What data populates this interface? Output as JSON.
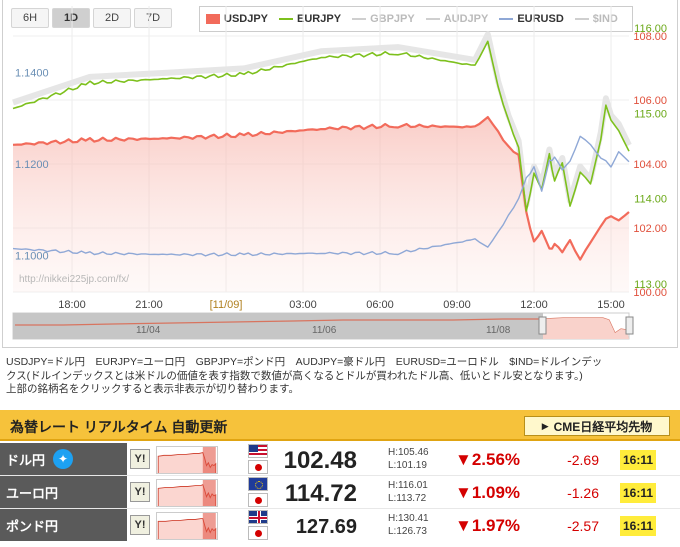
{
  "range_buttons": [
    {
      "label": "6H",
      "active": false
    },
    {
      "label": "1D",
      "active": true
    },
    {
      "label": "2D",
      "active": false
    },
    {
      "label": "7D",
      "active": false
    }
  ],
  "legend": [
    {
      "label": "USDJPY",
      "color": "#f26b5b",
      "style": "box",
      "active": true
    },
    {
      "label": "EURJPY",
      "color": "#7dc01d",
      "style": "line",
      "active": true
    },
    {
      "label": "GBPJPY",
      "color": "#bbbbbb",
      "style": "line",
      "active": false
    },
    {
      "label": "AUDJPY",
      "color": "#bbbbbb",
      "style": "line",
      "active": false
    },
    {
      "label": "EURUSD",
      "color": "#8fa8d6",
      "style": "line",
      "active": true
    },
    {
      "label": "$IND",
      "color": "#bbbbbb",
      "style": "line",
      "active": false
    }
  ],
  "chart_data": {
    "type": "line",
    "x_labels": [
      "18:00",
      "21:00",
      "[11/09]",
      "03:00",
      "06:00",
      "09:00",
      "12:00",
      "15:00"
    ],
    "left_axis_labels": [
      "1.1400",
      "1.1200",
      "1.1000"
    ],
    "usdjpy_axis_labels": [
      "108.00",
      "106.00",
      "104.00",
      "102.00",
      "100.00"
    ],
    "eurjpy_axis_labels": [
      "116.00",
      "115.00",
      "114.00",
      "113.00"
    ],
    "watermark": "http://nikkei225jp.com/fx/",
    "navigator_labels": [
      "11/04",
      "11/06",
      "11/08"
    ],
    "series": [
      {
        "name": "USDJPY",
        "color": "#f26b5b",
        "axis": "right_usdjpy",
        "ylim": [
          100,
          108
        ],
        "x": [
          0,
          3,
          6,
          9,
          12,
          15,
          18,
          18.5,
          18.9,
          19.3,
          19.7,
          20,
          20.3,
          20.6,
          20.9,
          21.1,
          21.4,
          21.7,
          22.1,
          22.5,
          22.9,
          23.3,
          23.6,
          24
        ],
        "values": [
          104.6,
          104.75,
          104.8,
          104.9,
          105.1,
          105.2,
          105.15,
          105.5,
          105.0,
          104.5,
          104.3,
          102.5,
          101.6,
          101.9,
          101.3,
          101.5,
          101.2,
          101.6,
          101.0,
          101.5,
          102.1,
          102.4,
          102.2,
          102.5
        ]
      },
      {
        "name": "EURJPY",
        "color": "#7dc01d",
        "axis": "right_eurjpy",
        "ylim": [
          113,
          116
        ],
        "x": [
          0,
          3,
          6,
          9,
          12,
          15,
          18,
          18.5,
          18.9,
          19.3,
          19.7,
          20,
          20.3,
          20.6,
          20.9,
          21.1,
          21.4,
          21.7,
          22.1,
          22.5,
          22.9,
          23.1,
          23.3,
          23.6,
          24
        ],
        "values": [
          115.15,
          115.45,
          115.5,
          115.55,
          115.75,
          115.8,
          115.65,
          115.95,
          115.4,
          115.0,
          114.7,
          113.95,
          114.4,
          114.2,
          114.6,
          114.3,
          114.5,
          114.0,
          114.4,
          114.25,
          114.8,
          115.2,
          115.0,
          114.9,
          114.65
        ]
      },
      {
        "name": "EURUSD",
        "color": "#8fa8d6",
        "axis": "left",
        "ylim": [
          1.092,
          1.148
        ],
        "x": [
          0,
          3,
          6,
          9,
          12,
          15,
          18,
          18.5,
          18.9,
          19.3,
          19.7,
          20,
          20.3,
          20.6,
          20.9,
          21.1,
          21.4,
          21.7,
          22.1,
          22.5,
          22.9,
          23.3,
          23.6,
          24
        ],
        "values": [
          1.1015,
          1.1005,
          1.1002,
          1.1002,
          1.1005,
          1.1005,
          1.1035,
          1.102,
          1.105,
          1.1085,
          1.1125,
          1.117,
          1.1195,
          1.114,
          1.1205,
          1.1215,
          1.1185,
          1.1205,
          1.126,
          1.124,
          1.1215,
          1.1195,
          1.1225,
          1.1205
        ]
      }
    ]
  },
  "description": [
    "USDJPY=ドル円　EURJPY=ユーロ円　GBPJPY=ポンド円　AUDJPY=豪ドル円　EURUSD=ユーロドル　$IND=ドルインデッ",
    "クス(ドルインデックスとは米ドルの価値を表す指数で数値が高くなるとドルが買われたドル高、低いとドル安となります。)",
    "上部の銘柄名をクリックすると表示非表示が切り替わります。"
  ],
  "panel": {
    "title": "為替レート リアルタイム 自動更新",
    "cme_button": "CME日経平均先物",
    "rows": [
      {
        "name": "ドル円",
        "twitter": true,
        "yahoo": "Y!",
        "price": "102.48",
        "high": "H:105.46",
        "low": "L:101.19",
        "pct": "▼2.56%",
        "change": "-2.69",
        "time": "16:11",
        "flag": "us"
      },
      {
        "name": "ユーロ円",
        "twitter": false,
        "yahoo": "Y!",
        "price": "114.72",
        "high": "H:116.01",
        "low": "L:113.72",
        "pct": "▼1.09%",
        "change": "-1.26",
        "time": "16:11",
        "flag": "eu"
      },
      {
        "name": "ポンド円",
        "twitter": false,
        "yahoo": "Y!",
        "price": "127.69",
        "high": "H:130.41",
        "low": "L:126.73",
        "pct": "▼1.97%",
        "change": "-2.57",
        "time": "16:11",
        "flag": "uk"
      }
    ]
  }
}
